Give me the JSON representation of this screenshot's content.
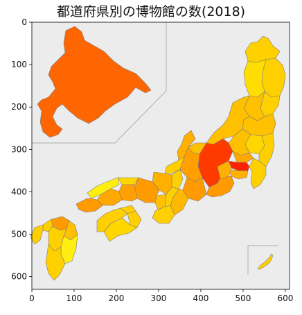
{
  "title": "都道府県別の博物館の数(2018)",
  "chart_data": {
    "type": "choropleth",
    "title": "都道府県別の博物館の数(2018)",
    "xlim": [
      0,
      610
    ],
    "ylim": [
      630,
      0
    ],
    "x_ticks": [
      "0",
      "100",
      "200",
      "300",
      "400",
      "500",
      "600"
    ],
    "y_ticks": [
      "0",
      "100",
      "200",
      "300",
      "400",
      "500",
      "600"
    ],
    "grid": false,
    "colormap": "autumn_r",
    "colors": {
      "background": "#ececec",
      "highest": "#ff2200",
      "high": "#ff6a00",
      "upper_mid": "#ff9a00",
      "mid": "#ffc000",
      "lower_mid": "#ffd800",
      "low": "#ffee10"
    },
    "insets": [
      "hokkaido",
      "okinawa"
    ]
  }
}
